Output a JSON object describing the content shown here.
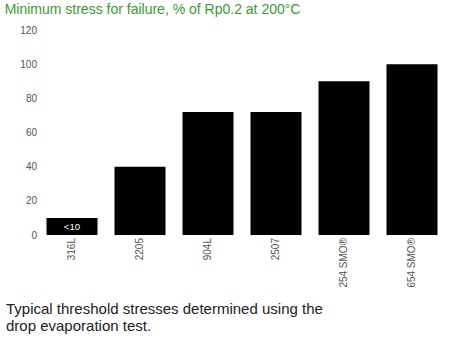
{
  "chart_data": {
    "type": "bar",
    "title": "Minimum stress for failure, % of Rp0.2 at 200°C",
    "caption": "Typical threshold stresses determined using the drop evaporation test.",
    "categories": [
      "316L",
      "2205",
      "904L",
      "2507",
      "254 SMO®",
      "654 SMO®"
    ],
    "values": [
      10,
      40,
      72,
      72,
      90,
      100
    ],
    "value_labels": [
      "<10",
      null,
      null,
      null,
      null,
      null
    ],
    "color": "#000000",
    "ylim": [
      0,
      120
    ],
    "yticks": [
      0,
      20,
      40,
      60,
      80,
      100,
      120
    ],
    "grid": false
  }
}
